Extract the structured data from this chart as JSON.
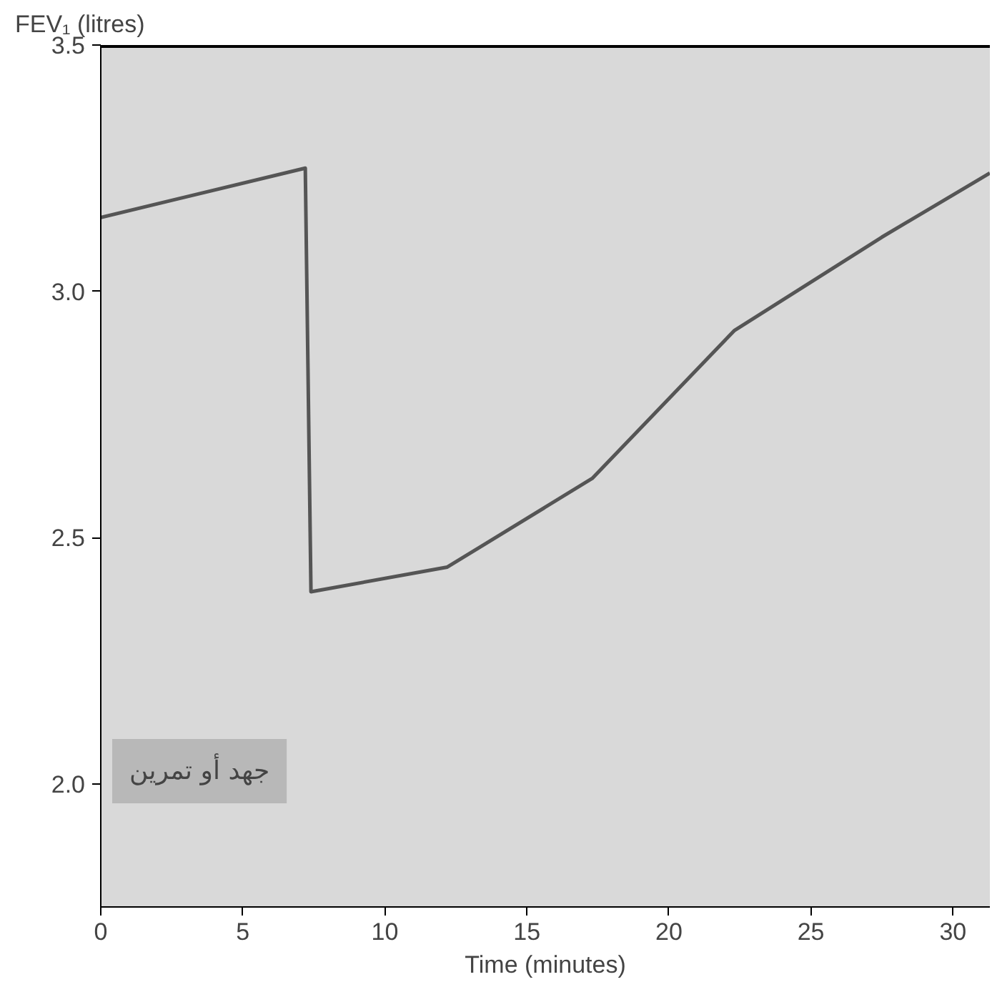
{
  "chart_data": {
    "type": "line",
    "ylabel": "FEV₁ (litres)",
    "xlabel": "Time (minutes)",
    "x": [
      0,
      7.2,
      7.4,
      12.2,
      17.3,
      22.3,
      27.5,
      31.3
    ],
    "series": [
      {
        "color": "#555555",
        "values": [
          3.15,
          3.25,
          2.39,
          2.44,
          2.62,
          2.92,
          3.11,
          3.24
        ]
      }
    ],
    "xlim": [
      0,
      31.3
    ],
    "ylim": [
      1.75,
      3.5
    ],
    "xticks": [
      0,
      5,
      10,
      15,
      20,
      25,
      30
    ],
    "yticks": [
      {
        "value": 2.0,
        "label": "2.0"
      },
      {
        "value": 2.5,
        "label": "2.5"
      },
      {
        "value": 3.0,
        "label": "3.0"
      },
      {
        "value": 3.5,
        "label": "3.5"
      }
    ],
    "annotations": [
      "جهد أو تمرين"
    ],
    "grid": false,
    "marker": "none",
    "line_style": "solid"
  }
}
